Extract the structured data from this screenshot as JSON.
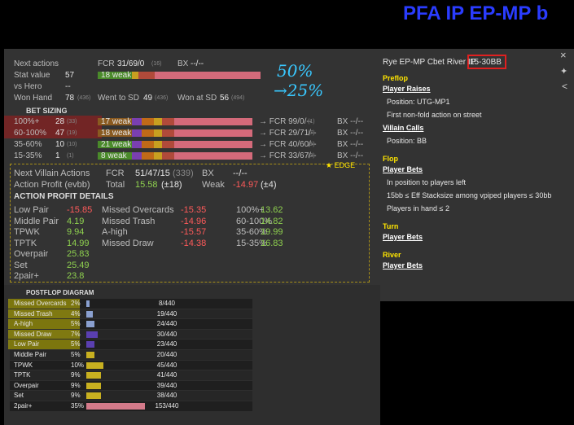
{
  "header": {
    "title": "PFA IP EP-MP b"
  },
  "annotation": {
    "line1": "50%",
    "line2": "→25%"
  },
  "stats": {
    "rows": [
      [
        "Next actions",
        "FCR",
        "31/69/0",
        "(16)",
        "BX",
        "--/--"
      ],
      [
        "Stat value",
        "57",
        "18 weak"
      ],
      [
        "vs Hero",
        "--"
      ],
      [
        "Won Hand",
        "78",
        "(436)",
        "Went to SD",
        "49",
        "(436)",
        "Won at SD",
        "56",
        "(494)"
      ]
    ]
  },
  "bet_sizing": {
    "title": "BET SIZING",
    "rows": [
      [
        "100%+",
        "28",
        "(33)",
        "17 weak",
        "→ FCR 99/0/--",
        "(1)",
        "BX --/--"
      ],
      [
        "60-100%",
        "47",
        "(19)",
        "18 weak",
        "→ FCR 29/71/--",
        "(7)",
        "BX --/--"
      ],
      [
        "35-60%",
        "10",
        "(10)",
        "21 weak",
        "→ FCR 40/60/--",
        "(5)",
        "BX --/--"
      ],
      [
        "15-35%",
        "1",
        "(1)",
        "8 weak",
        "→ FCR 33/67/--",
        "(3)",
        "BX --/--"
      ]
    ]
  },
  "villain": {
    "edge": "★ EDGE",
    "rows": [
      [
        "Next Villain Actions",
        "FCR",
        "51/47/15",
        "(339)",
        "BX",
        "--/--"
      ],
      [
        "Action Profit (evbb)",
        "Total",
        "15.58",
        "(±18)",
        "Weak",
        "-14.97",
        "(±4)"
      ]
    ],
    "details_title": "ACTION PROFIT DETAILS",
    "details": [
      [
        "Low Pair",
        "-15.85",
        "Missed Overcards",
        "-15.35",
        "100%+",
        "13.62"
      ],
      [
        "Middle Pair",
        "4.19",
        "Missed Trash",
        "-14.96",
        "60-100%",
        "14.82"
      ],
      [
        "TPWK",
        "9.94",
        "A-high",
        "-15.57",
        "35-60%",
        "19.99"
      ],
      [
        "TPTK",
        "14.99",
        "Missed Draw",
        "-14.38",
        "15-35%",
        "16.83"
      ],
      [
        "Overpair",
        "25.83"
      ],
      [
        "Set",
        "25.49"
      ],
      [
        "2pair+",
        "23.8"
      ]
    ]
  },
  "postflop": {
    "title": "POSTFLOP DIAGRAM",
    "rows": [
      {
        "label": "Missed Overcards",
        "value": 2,
        "value_label": "2%",
        "count": "8/440"
      },
      {
        "label": "Missed Trash",
        "value": 4,
        "value_label": "4%",
        "count": "19/440"
      },
      {
        "label": "A-high",
        "value": 5,
        "value_label": "5%",
        "count": "24/440"
      },
      {
        "label": "Missed Draw",
        "value": 7,
        "value_label": "7%",
        "count": "30/440"
      },
      {
        "label": "Low Pair",
        "value": 5,
        "value_label": "5%",
        "count": "23/440"
      },
      {
        "label": "Middle Pair",
        "value": 5,
        "value_label": "5%",
        "count": "20/440"
      },
      {
        "label": "TPWK",
        "value": 10,
        "value_label": "10%",
        "count": "45/440"
      },
      {
        "label": "TPTK",
        "value": 9,
        "value_label": "9%",
        "count": "41/440"
      },
      {
        "label": "Overpair",
        "value": 9,
        "value_label": "9%",
        "count": "39/440"
      },
      {
        "label": "Set",
        "value": 9,
        "value_label": "9%",
        "count": "38/440"
      },
      {
        "label": "2pair+",
        "value": 35,
        "value_label": "35%",
        "count": "153/440"
      }
    ]
  },
  "filter": {
    "title": "Rye EP-MP Cbet River IP",
    "tag": "15-30BB",
    "sections": [
      {
        "heading": "Preflop",
        "items": [
          [
            "Player Raises",
            "Position: UTG-MP1",
            "First non-fold action on street"
          ],
          [
            "Villain Calls",
            "Position: BB"
          ]
        ]
      },
      {
        "heading": "Flop",
        "items": [
          [
            "Player Bets",
            "In position to players left",
            "15bb ≤ Eff Stacksize among vpiped players ≤ 30bb",
            "Players in hand ≤ 2"
          ]
        ]
      },
      {
        "heading": "Turn",
        "items": [
          [
            "Player Bets"
          ]
        ]
      },
      {
        "heading": "River",
        "items": [
          [
            "Player Bets"
          ]
        ]
      }
    ]
  }
}
